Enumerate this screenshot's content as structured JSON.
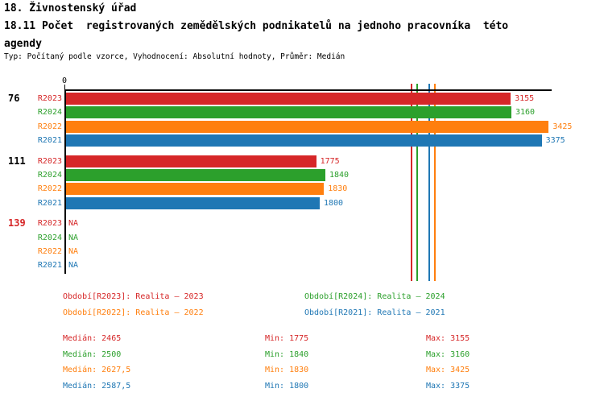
{
  "header": {
    "title": "18. Živnostenský úřad",
    "subtitle_line1": "18.11 Počet  registrovaných zemědělských podnikatelů na jednoho pracovníka  této",
    "subtitle_line2": "agendy",
    "meta": "Typ: Počítaný podle vzorce, Vyhodnocení: Absolutní hodnoty, Průměr: Medián"
  },
  "colors": {
    "R2023": "#d62728",
    "R2024": "#2ca02c",
    "R2022": "#ff7f0e",
    "R2021": "#1f77b4",
    "axis": "#000000"
  },
  "chart_data": {
    "type": "bar",
    "orientation": "horizontal",
    "title": "18.11 Počet registrovaných zemědělských podnikatelů na jednoho pracovníka této agendy",
    "x_origin_label": "0",
    "xlim": [
      0,
      3460
    ],
    "series_order": [
      "R2023",
      "R2024",
      "R2022",
      "R2021"
    ],
    "groups": [
      {
        "label": "76",
        "label_color": "#000000",
        "rows": [
          {
            "series": "R2023",
            "value": 3155
          },
          {
            "series": "R2024",
            "value": 3160
          },
          {
            "series": "R2022",
            "value": 3425
          },
          {
            "series": "R2021",
            "value": 3375
          }
        ]
      },
      {
        "label": "111",
        "label_color": "#000000",
        "rows": [
          {
            "series": "R2023",
            "value": 1775
          },
          {
            "series": "R2024",
            "value": 1840
          },
          {
            "series": "R2022",
            "value": 1830
          },
          {
            "series": "R2021",
            "value": 1800
          }
        ]
      },
      {
        "label": "139",
        "label_color": "#d62728",
        "rows": [
          {
            "series": "R2023",
            "value": "NA"
          },
          {
            "series": "R2024",
            "value": "NA"
          },
          {
            "series": "R2022",
            "value": "NA"
          },
          {
            "series": "R2021",
            "value": "NA"
          }
        ]
      }
    ],
    "median_lines": {
      "R2023": 2465,
      "R2024": 2500,
      "R2022": 2627.5,
      "R2021": 2587.5
    },
    "series_stats": [
      {
        "series": "R2023",
        "median": 2465,
        "min": 1775,
        "max": 3155
      },
      {
        "series": "R2024",
        "median": 2500,
        "min": 1840,
        "max": 3160
      },
      {
        "series": "R2022",
        "median": 2627.5,
        "min": 1830,
        "max": 3425
      },
      {
        "series": "R2021",
        "median": 2587.5,
        "min": 1800,
        "max": 3375
      }
    ]
  },
  "legend": [
    {
      "series": "R2023",
      "text": "Období[R2023]: Realita – 2023",
      "color": "#d62728"
    },
    {
      "series": "R2024",
      "text": "Období[R2024]: Realita – 2024",
      "color": "#2ca02c"
    },
    {
      "series": "R2022",
      "text": "Období[R2022]: Realita – 2022",
      "color": "#ff7f0e"
    },
    {
      "series": "R2021",
      "text": "Období[R2021]: Realita – 2021",
      "color": "#1f77b4"
    }
  ],
  "stats_rows": [
    {
      "median_text": "Medián: 2465",
      "min_text": "Min: 1775",
      "max_text": "Max: 3155",
      "color": "#d62728"
    },
    {
      "median_text": "Medián: 2500",
      "min_text": "Min: 1840",
      "max_text": "Max: 3160",
      "color": "#2ca02c"
    },
    {
      "median_text": "Medián: 2627,5",
      "min_text": "Min: 1830",
      "max_text": "Max: 3425",
      "color": "#ff7f0e"
    },
    {
      "median_text": "Medián: 2587,5",
      "min_text": "Min: 1800",
      "max_text": "Max: 3375",
      "color": "#1f77b4"
    }
  ]
}
